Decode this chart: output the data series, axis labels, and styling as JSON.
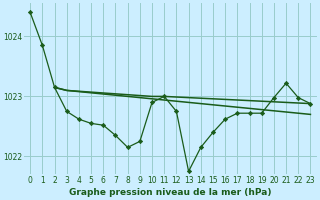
{
  "title": "Graphe pression niveau de la mer (hPa)",
  "background_color": "#cceeff",
  "grid_color": "#99cccc",
  "line_color": "#1a5c1a",
  "marker_color": "#1a5c1a",
  "xlim": [
    -0.5,
    23.5
  ],
  "ylim": [
    1021.7,
    1024.55
  ],
  "yticks": [
    1022,
    1023,
    1024
  ],
  "xticks": [
    0,
    1,
    2,
    3,
    4,
    5,
    6,
    7,
    8,
    9,
    10,
    11,
    12,
    13,
    14,
    15,
    16,
    17,
    18,
    19,
    20,
    21,
    22,
    23
  ],
  "series1_x": [
    0,
    1,
    2,
    3,
    4,
    5,
    6,
    7,
    8,
    9,
    10,
    11,
    12,
    13,
    14,
    15,
    16,
    17,
    18,
    19,
    20,
    21,
    22,
    23
  ],
  "series1_y": [
    1024.4,
    1023.85,
    1023.15,
    1022.75,
    1022.62,
    1022.55,
    1022.52,
    1022.35,
    1022.15,
    1022.25,
    1022.9,
    1023.0,
    1022.75,
    1021.75,
    1022.15,
    1022.4,
    1022.62,
    1022.72,
    1022.72,
    1022.72,
    1022.98,
    1023.22,
    1022.98,
    1022.88
  ],
  "series2_x": [
    2,
    3,
    4,
    5,
    6,
    7,
    8,
    9,
    10,
    11,
    12,
    13,
    14,
    15,
    16,
    17,
    18,
    19,
    20,
    21,
    22,
    23
  ],
  "series2_y": [
    1023.15,
    1023.1,
    1023.08,
    1023.06,
    1023.04,
    1023.02,
    1023.0,
    1022.98,
    1022.96,
    1022.94,
    1022.92,
    1022.9,
    1022.88,
    1022.86,
    1022.84,
    1022.82,
    1022.8,
    1022.78,
    1022.76,
    1022.74,
    1022.72,
    1022.7
  ],
  "series3_x": [
    2,
    3,
    10,
    11,
    12,
    13,
    14,
    15,
    16,
    17,
    18,
    19,
    20,
    21,
    22,
    23
  ],
  "series3_y": [
    1023.15,
    1023.1,
    1023.0,
    1023.0,
    1022.99,
    1022.98,
    1022.97,
    1022.96,
    1022.95,
    1022.94,
    1022.93,
    1022.92,
    1022.91,
    1022.9,
    1022.89,
    1022.88
  ],
  "title_fontsize": 6.5,
  "tick_fontsize": 5.5
}
